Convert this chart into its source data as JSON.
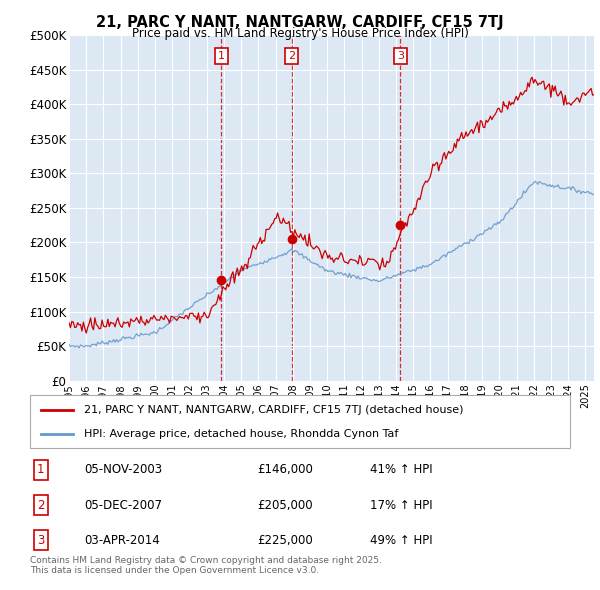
{
  "title": "21, PARC Y NANT, NANTGARW, CARDIFF, CF15 7TJ",
  "subtitle": "Price paid vs. HM Land Registry's House Price Index (HPI)",
  "background_color": "#ffffff",
  "plot_bg_color": "#dde8f5",
  "grid_color": "#ffffff",
  "line1_color": "#cc0000",
  "line2_color": "#6699cc",
  "ylim": [
    0,
    500000
  ],
  "yticks": [
    0,
    50000,
    100000,
    150000,
    200000,
    250000,
    300000,
    350000,
    400000,
    450000,
    500000
  ],
  "ytick_labels": [
    "£0",
    "£50K",
    "£100K",
    "£150K",
    "£200K",
    "£250K",
    "£300K",
    "£350K",
    "£400K",
    "£450K",
    "£500K"
  ],
  "legend_line1": "21, PARC Y NANT, NANTGARW, CARDIFF, CF15 7TJ (detached house)",
  "legend_line2": "HPI: Average price, detached house, Rhondda Cynon Taf",
  "sale1_date": "05-NOV-2003",
  "sale1_price": 146000,
  "sale1_hpi": "41% ↑ HPI",
  "sale1_year": 2003.85,
  "sale2_date": "05-DEC-2007",
  "sale2_price": 205000,
  "sale2_hpi": "17% ↑ HPI",
  "sale2_year": 2007.93,
  "sale3_date": "03-APR-2014",
  "sale3_price": 225000,
  "sale3_hpi": "49% ↑ HPI",
  "sale3_year": 2014.25,
  "footer": "Contains HM Land Registry data © Crown copyright and database right 2025.\nThis data is licensed under the Open Government Licence v3.0.",
  "xmin": 1995.0,
  "xmax": 2025.5
}
